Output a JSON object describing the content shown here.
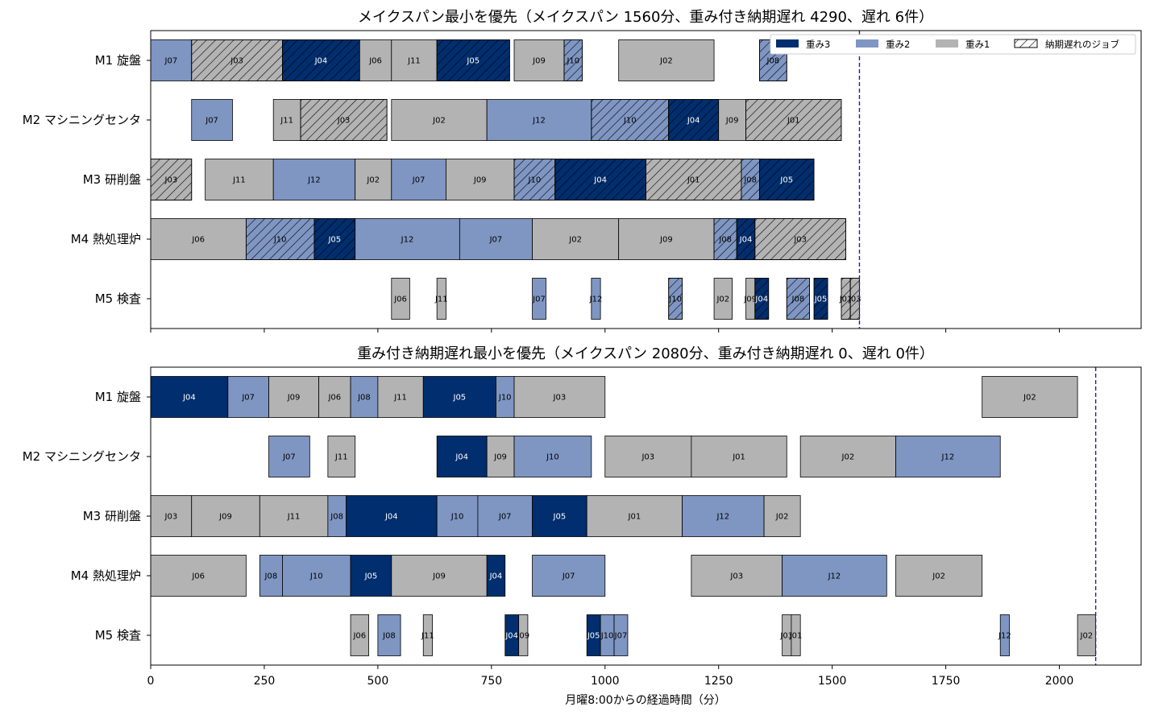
{
  "colors": {
    "w3": "#002e6e",
    "w2": "#7f96c3",
    "w1": "#b3b3b3",
    "makespan_line": "#1f1fa0"
  },
  "x_axis_label": "月曜8:00からの経過時間（分）",
  "x_ticks": [
    0,
    250,
    500,
    750,
    1000,
    1250,
    1500,
    1750,
    2000
  ],
  "legend": {
    "w3": "重み3",
    "w2": "重み2",
    "w1": "重み1",
    "late": "納期遅れのジョブ"
  },
  "chart_data": [
    {
      "type": "gantt",
      "title": "メイクスパン最小を優先（メイクスパン 1560分、重み付き納期遅れ 4290、遅れ 6件）",
      "xlim": [
        0,
        2180
      ],
      "makespan": 1560,
      "machines": [
        "M1 旋盤",
        "M2 マシニングセンタ",
        "M3 研削盤",
        "M4 熱処理炉",
        "M5 検査"
      ],
      "tasks": [
        {
          "m": 0,
          "job": "J07",
          "s": 0,
          "e": 90,
          "w": 2,
          "late": false
        },
        {
          "m": 0,
          "job": "J03",
          "s": 90,
          "e": 290,
          "w": 1,
          "late": true
        },
        {
          "m": 0,
          "job": "J04",
          "s": 290,
          "e": 460,
          "w": 3,
          "late": true
        },
        {
          "m": 0,
          "job": "J06",
          "s": 460,
          "e": 530,
          "w": 1,
          "late": false
        },
        {
          "m": 0,
          "job": "J11",
          "s": 530,
          "e": 630,
          "w": 1,
          "late": false
        },
        {
          "m": 0,
          "job": "J05",
          "s": 630,
          "e": 790,
          "w": 3,
          "late": true
        },
        {
          "m": 0,
          "job": "J09",
          "s": 800,
          "e": 910,
          "w": 1,
          "late": false
        },
        {
          "m": 0,
          "job": "J10",
          "s": 910,
          "e": 950,
          "w": 2,
          "late": true
        },
        {
          "m": 0,
          "job": "J02",
          "s": 1030,
          "e": 1240,
          "w": 1,
          "late": false
        },
        {
          "m": 0,
          "job": "J08",
          "s": 1340,
          "e": 1400,
          "w": 2,
          "late": true
        },
        {
          "m": 1,
          "job": "J07",
          "s": 90,
          "e": 180,
          "w": 2,
          "late": false
        },
        {
          "m": 1,
          "job": "J11",
          "s": 270,
          "e": 330,
          "w": 1,
          "late": false
        },
        {
          "m": 1,
          "job": "J03",
          "s": 330,
          "e": 520,
          "w": 1,
          "late": true
        },
        {
          "m": 1,
          "job": "J02",
          "s": 530,
          "e": 740,
          "w": 1,
          "late": false
        },
        {
          "m": 1,
          "job": "J12",
          "s": 740,
          "e": 970,
          "w": 2,
          "late": false
        },
        {
          "m": 1,
          "job": "J10",
          "s": 970,
          "e": 1140,
          "w": 2,
          "late": true
        },
        {
          "m": 1,
          "job": "J04",
          "s": 1140,
          "e": 1250,
          "w": 3,
          "late": true
        },
        {
          "m": 1,
          "job": "J09",
          "s": 1250,
          "e": 1310,
          "w": 1,
          "late": false
        },
        {
          "m": 1,
          "job": "J01",
          "s": 1310,
          "e": 1520,
          "w": 1,
          "late": true
        },
        {
          "m": 2,
          "job": "J03",
          "s": 0,
          "e": 90,
          "w": 1,
          "late": true
        },
        {
          "m": 2,
          "job": "J11",
          "s": 120,
          "e": 270,
          "w": 1,
          "late": false
        },
        {
          "m": 2,
          "job": "J12",
          "s": 270,
          "e": 450,
          "w": 2,
          "late": false
        },
        {
          "m": 2,
          "job": "J02",
          "s": 450,
          "e": 530,
          "w": 1,
          "late": false
        },
        {
          "m": 2,
          "job": "J07",
          "s": 530,
          "e": 650,
          "w": 2,
          "late": false
        },
        {
          "m": 2,
          "job": "J09",
          "s": 650,
          "e": 800,
          "w": 1,
          "late": false
        },
        {
          "m": 2,
          "job": "J10",
          "s": 800,
          "e": 890,
          "w": 2,
          "late": true
        },
        {
          "m": 2,
          "job": "J04",
          "s": 890,
          "e": 1090,
          "w": 3,
          "late": true
        },
        {
          "m": 2,
          "job": "J01",
          "s": 1090,
          "e": 1300,
          "w": 1,
          "late": true
        },
        {
          "m": 2,
          "job": "J08",
          "s": 1300,
          "e": 1340,
          "w": 2,
          "late": true
        },
        {
          "m": 2,
          "job": "J05",
          "s": 1340,
          "e": 1460,
          "w": 3,
          "late": true
        },
        {
          "m": 3,
          "job": "J06",
          "s": 0,
          "e": 210,
          "w": 1,
          "late": false
        },
        {
          "m": 3,
          "job": "J10",
          "s": 210,
          "e": 360,
          "w": 2,
          "late": true
        },
        {
          "m": 3,
          "job": "J05",
          "s": 360,
          "e": 450,
          "w": 3,
          "late": true
        },
        {
          "m": 3,
          "job": "J12",
          "s": 450,
          "e": 680,
          "w": 2,
          "late": false
        },
        {
          "m": 3,
          "job": "J07",
          "s": 680,
          "e": 840,
          "w": 2,
          "late": false
        },
        {
          "m": 3,
          "job": "J02",
          "s": 840,
          "e": 1030,
          "w": 1,
          "late": false
        },
        {
          "m": 3,
          "job": "J09",
          "s": 1030,
          "e": 1240,
          "w": 1,
          "late": false
        },
        {
          "m": 3,
          "job": "J08",
          "s": 1240,
          "e": 1290,
          "w": 2,
          "late": true
        },
        {
          "m": 3,
          "job": "J04",
          "s": 1290,
          "e": 1330,
          "w": 3,
          "late": true
        },
        {
          "m": 3,
          "job": "J03",
          "s": 1330,
          "e": 1530,
          "w": 1,
          "late": true
        },
        {
          "m": 4,
          "job": "J06",
          "s": 530,
          "e": 570,
          "w": 1,
          "late": false
        },
        {
          "m": 4,
          "job": "J11",
          "s": 630,
          "e": 650,
          "w": 1,
          "late": false
        },
        {
          "m": 4,
          "job": "J07",
          "s": 840,
          "e": 870,
          "w": 2,
          "late": false
        },
        {
          "m": 4,
          "job": "J12",
          "s": 970,
          "e": 990,
          "w": 2,
          "late": false
        },
        {
          "m": 4,
          "job": "J10",
          "s": 1140,
          "e": 1170,
          "w": 2,
          "late": true
        },
        {
          "m": 4,
          "job": "J02",
          "s": 1240,
          "e": 1280,
          "w": 1,
          "late": false
        },
        {
          "m": 4,
          "job": "J09",
          "s": 1310,
          "e": 1330,
          "w": 1,
          "late": false
        },
        {
          "m": 4,
          "job": "J04",
          "s": 1330,
          "e": 1360,
          "w": 3,
          "late": true
        },
        {
          "m": 4,
          "job": "J08",
          "s": 1400,
          "e": 1450,
          "w": 2,
          "late": true
        },
        {
          "m": 4,
          "job": "J05",
          "s": 1460,
          "e": 1490,
          "w": 3,
          "late": true
        },
        {
          "m": 4,
          "job": "J01",
          "s": 1520,
          "e": 1540,
          "w": 1,
          "late": true
        },
        {
          "m": 4,
          "job": "J03",
          "s": 1540,
          "e": 1560,
          "w": 1,
          "late": true
        }
      ]
    },
    {
      "type": "gantt",
      "title": "重み付き納期遅れ最小を優先（メイクスパン 2080分、重み付き納期遅れ 0、遅れ 0件）",
      "xlim": [
        0,
        2180
      ],
      "makespan": 2080,
      "machines": [
        "M1 旋盤",
        "M2 マシニングセンタ",
        "M3 研削盤",
        "M4 熱処理炉",
        "M5 検査"
      ],
      "tasks": [
        {
          "m": 0,
          "job": "J04",
          "s": 0,
          "e": 170,
          "w": 3,
          "late": false
        },
        {
          "m": 0,
          "job": "J07",
          "s": 170,
          "e": 260,
          "w": 2,
          "late": false
        },
        {
          "m": 0,
          "job": "J09",
          "s": 260,
          "e": 370,
          "w": 1,
          "late": false
        },
        {
          "m": 0,
          "job": "J06",
          "s": 370,
          "e": 440,
          "w": 1,
          "late": false
        },
        {
          "m": 0,
          "job": "J08",
          "s": 440,
          "e": 500,
          "w": 2,
          "late": false
        },
        {
          "m": 0,
          "job": "J11",
          "s": 500,
          "e": 600,
          "w": 1,
          "late": false
        },
        {
          "m": 0,
          "job": "J05",
          "s": 600,
          "e": 760,
          "w": 3,
          "late": false
        },
        {
          "m": 0,
          "job": "J10",
          "s": 760,
          "e": 800,
          "w": 2,
          "late": false
        },
        {
          "m": 0,
          "job": "J03",
          "s": 800,
          "e": 1000,
          "w": 1,
          "late": false
        },
        {
          "m": 0,
          "job": "J02",
          "s": 1830,
          "e": 2040,
          "w": 1,
          "late": false
        },
        {
          "m": 1,
          "job": "J07",
          "s": 260,
          "e": 350,
          "w": 2,
          "late": false
        },
        {
          "m": 1,
          "job": "J11",
          "s": 390,
          "e": 450,
          "w": 1,
          "late": false
        },
        {
          "m": 1,
          "job": "J04",
          "s": 630,
          "e": 740,
          "w": 3,
          "late": false
        },
        {
          "m": 1,
          "job": "J09",
          "s": 740,
          "e": 800,
          "w": 1,
          "late": false
        },
        {
          "m": 1,
          "job": "J10",
          "s": 800,
          "e": 970,
          "w": 2,
          "late": false
        },
        {
          "m": 1,
          "job": "J03",
          "s": 1000,
          "e": 1190,
          "w": 1,
          "late": false
        },
        {
          "m": 1,
          "job": "J01",
          "s": 1190,
          "e": 1400,
          "w": 1,
          "late": false
        },
        {
          "m": 1,
          "job": "J02",
          "s": 1430,
          "e": 1640,
          "w": 1,
          "late": false
        },
        {
          "m": 1,
          "job": "J12",
          "s": 1640,
          "e": 1870,
          "w": 2,
          "late": false
        },
        {
          "m": 2,
          "job": "J03",
          "s": 0,
          "e": 90,
          "w": 1,
          "late": false
        },
        {
          "m": 2,
          "job": "J09",
          "s": 90,
          "e": 240,
          "w": 1,
          "late": false
        },
        {
          "m": 2,
          "job": "J11",
          "s": 240,
          "e": 390,
          "w": 1,
          "late": false
        },
        {
          "m": 2,
          "job": "J08",
          "s": 390,
          "e": 430,
          "w": 2,
          "late": false
        },
        {
          "m": 2,
          "job": "J04",
          "s": 430,
          "e": 630,
          "w": 3,
          "late": false
        },
        {
          "m": 2,
          "job": "J10",
          "s": 630,
          "e": 720,
          "w": 2,
          "late": false
        },
        {
          "m": 2,
          "job": "J07",
          "s": 720,
          "e": 840,
          "w": 2,
          "late": false
        },
        {
          "m": 2,
          "job": "J05",
          "s": 840,
          "e": 960,
          "w": 3,
          "late": false
        },
        {
          "m": 2,
          "job": "J01",
          "s": 960,
          "e": 1170,
          "w": 1,
          "late": false
        },
        {
          "m": 2,
          "job": "J12",
          "s": 1170,
          "e": 1350,
          "w": 2,
          "late": false
        },
        {
          "m": 2,
          "job": "J02",
          "s": 1350,
          "e": 1430,
          "w": 1,
          "late": false
        },
        {
          "m": 3,
          "job": "J06",
          "s": 0,
          "e": 210,
          "w": 1,
          "late": false
        },
        {
          "m": 3,
          "job": "J08",
          "s": 240,
          "e": 290,
          "w": 2,
          "late": false
        },
        {
          "m": 3,
          "job": "J10",
          "s": 290,
          "e": 440,
          "w": 2,
          "late": false
        },
        {
          "m": 3,
          "job": "J05",
          "s": 440,
          "e": 530,
          "w": 3,
          "late": false
        },
        {
          "m": 3,
          "job": "J09",
          "s": 530,
          "e": 740,
          "w": 1,
          "late": false
        },
        {
          "m": 3,
          "job": "J04",
          "s": 740,
          "e": 780,
          "w": 3,
          "late": false
        },
        {
          "m": 3,
          "job": "J07",
          "s": 840,
          "e": 1000,
          "w": 2,
          "late": false
        },
        {
          "m": 3,
          "job": "J03",
          "s": 1190,
          "e": 1390,
          "w": 1,
          "late": false
        },
        {
          "m": 3,
          "job": "J12",
          "s": 1390,
          "e": 1620,
          "w": 2,
          "late": false
        },
        {
          "m": 3,
          "job": "J02",
          "s": 1640,
          "e": 1830,
          "w": 1,
          "late": false
        },
        {
          "m": 4,
          "job": "J06",
          "s": 440,
          "e": 480,
          "w": 1,
          "late": false
        },
        {
          "m": 4,
          "job": "J08",
          "s": 500,
          "e": 550,
          "w": 2,
          "late": false
        },
        {
          "m": 4,
          "job": "J11",
          "s": 600,
          "e": 620,
          "w": 1,
          "late": false
        },
        {
          "m": 4,
          "job": "J04",
          "s": 780,
          "e": 810,
          "w": 3,
          "late": false
        },
        {
          "m": 4,
          "job": "J09",
          "s": 810,
          "e": 830,
          "w": 1,
          "late": false
        },
        {
          "m": 4,
          "job": "J05",
          "s": 960,
          "e": 990,
          "w": 3,
          "late": false
        },
        {
          "m": 4,
          "job": "J10",
          "s": 990,
          "e": 1020,
          "w": 2,
          "late": false
        },
        {
          "m": 4,
          "job": "J07",
          "s": 1020,
          "e": 1050,
          "w": 2,
          "late": false
        },
        {
          "m": 4,
          "job": "J03",
          "s": 1390,
          "e": 1410,
          "w": 1,
          "late": false
        },
        {
          "m": 4,
          "job": "J01",
          "s": 1410,
          "e": 1430,
          "w": 1,
          "late": false
        },
        {
          "m": 4,
          "job": "J12",
          "s": 1870,
          "e": 1890,
          "w": 2,
          "late": false
        },
        {
          "m": 4,
          "job": "J02",
          "s": 2040,
          "e": 2080,
          "w": 1,
          "late": false
        }
      ]
    }
  ]
}
